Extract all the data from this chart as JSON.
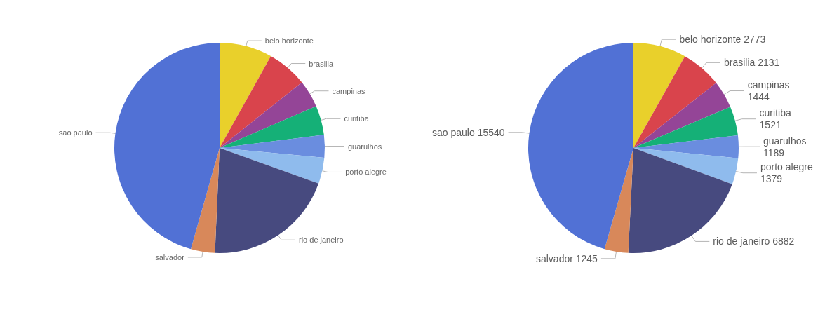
{
  "chart_data": [
    {
      "type": "pie",
      "categories": [
        "belo horizonte",
        "brasilia",
        "campinas",
        "curitiba",
        "guarulhos",
        "porto alegre",
        "rio de janeiro",
        "salvador",
        "sao paulo"
      ],
      "values": [
        8.1,
        6.2,
        4.2,
        4.5,
        3.5,
        4.0,
        20.2,
        3.7,
        45.6
      ],
      "colors": [
        "#e9d02b",
        "#d9444c",
        "#944597",
        "#15b077",
        "#6a8ddf",
        "#8fbbed",
        "#474a7f",
        "#d8885a",
        "#5171d5"
      ]
    },
    {
      "type": "pie",
      "categories": [
        "belo horizonte",
        "brasilia",
        "campinas",
        "curitiba",
        "guarulhos",
        "porto alegre",
        "rio de janeiro",
        "salvador",
        "sao paulo"
      ],
      "values": [
        2773,
        2131,
        1444,
        1521,
        1189,
        1379,
        6882,
        1245,
        15540
      ],
      "colors": [
        "#e9d02b",
        "#d9444c",
        "#944597",
        "#15b077",
        "#6a8ddf",
        "#8fbbed",
        "#474a7f",
        "#d8885a",
        "#5171d5"
      ],
      "data_labels": true
    }
  ]
}
